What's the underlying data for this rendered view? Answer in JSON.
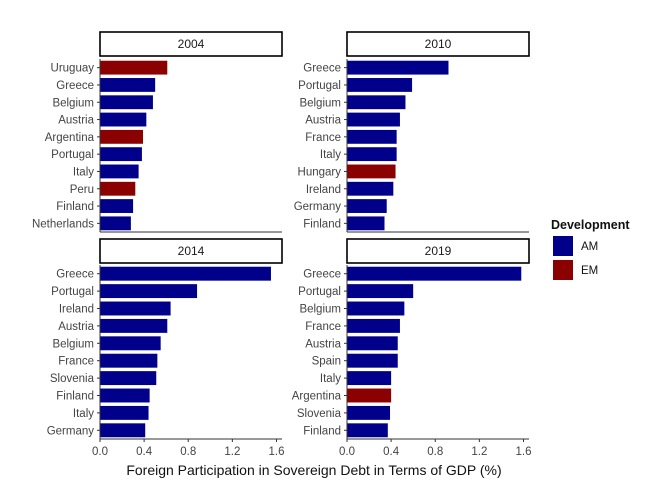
{
  "chart_data": {
    "type": "bar",
    "orientation": "horizontal",
    "layout": "facet-2x2",
    "xlabel": "Foreign Participation in Sovereign Debt in Terms of GDP (%)",
    "xlim": [
      0,
      1.65
    ],
    "xticks": [
      "0.0",
      "0.4",
      "0.8",
      "1.2",
      "1.6"
    ],
    "grid": false,
    "legend": {
      "title": "Development",
      "position": "right",
      "items": [
        {
          "name": "AM",
          "color": "#00008B"
        },
        {
          "name": "EM",
          "color": "#8B0000"
        }
      ]
    },
    "panels": [
      {
        "title": "2004",
        "categories": [
          "Uruguay",
          "Greece",
          "Belgium",
          "Austria",
          "Argentina",
          "Portugal",
          "Italy",
          "Peru",
          "Finland",
          "Netherlands"
        ],
        "values": [
          0.61,
          0.5,
          0.48,
          0.42,
          0.39,
          0.38,
          0.35,
          0.32,
          0.3,
          0.28
        ],
        "groups": [
          "EM",
          "AM",
          "AM",
          "AM",
          "EM",
          "AM",
          "AM",
          "EM",
          "AM",
          "AM"
        ]
      },
      {
        "title": "2010",
        "categories": [
          "Greece",
          "Portugal",
          "Belgium",
          "Austria",
          "France",
          "Italy",
          "Hungary",
          "Ireland",
          "Germany",
          "Finland"
        ],
        "values": [
          0.92,
          0.59,
          0.53,
          0.48,
          0.45,
          0.45,
          0.44,
          0.42,
          0.36,
          0.34
        ],
        "groups": [
          "AM",
          "AM",
          "AM",
          "AM",
          "AM",
          "AM",
          "EM",
          "AM",
          "AM",
          "AM"
        ]
      },
      {
        "title": "2014",
        "categories": [
          "Greece",
          "Portugal",
          "Ireland",
          "Austria",
          "Belgium",
          "France",
          "Slovenia",
          "Finland",
          "Italy",
          "Germany"
        ],
        "values": [
          1.55,
          0.88,
          0.64,
          0.61,
          0.55,
          0.52,
          0.51,
          0.45,
          0.44,
          0.41
        ],
        "groups": [
          "AM",
          "AM",
          "AM",
          "AM",
          "AM",
          "AM",
          "AM",
          "AM",
          "AM",
          "AM"
        ]
      },
      {
        "title": "2019",
        "categories": [
          "Greece",
          "Portugal",
          "Belgium",
          "France",
          "Austria",
          "Spain",
          "Italy",
          "Argentina",
          "Slovenia",
          "Finland"
        ],
        "values": [
          1.58,
          0.6,
          0.52,
          0.48,
          0.46,
          0.46,
          0.4,
          0.4,
          0.39,
          0.37
        ],
        "groups": [
          "AM",
          "AM",
          "AM",
          "AM",
          "AM",
          "AM",
          "AM",
          "EM",
          "AM",
          "AM"
        ]
      }
    ]
  }
}
